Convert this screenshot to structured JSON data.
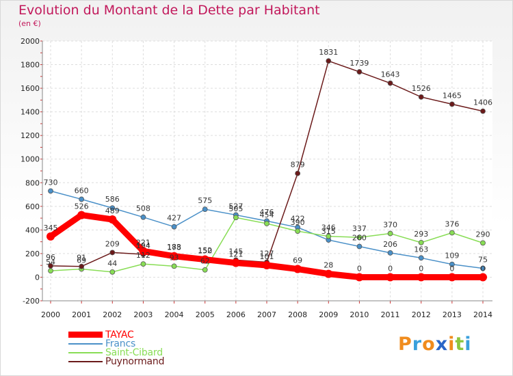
{
  "title": "Evolution du Montant de la Dette par Habitant",
  "subtitle": "(en €)",
  "logo": [
    "P",
    "r",
    "o",
    "x",
    "i",
    "t",
    "i"
  ],
  "logo_colors": [
    "#f08c1e",
    "#3aa0dc",
    "#f08c1e",
    "#2a66c8",
    "#f08c1e",
    "#8cc63e",
    "#3aa0dc"
  ],
  "chart_data": {
    "type": "line",
    "title": "Evolution du Montant de la Dette par Habitant",
    "ylabel": "(en €)",
    "xlabel": "",
    "categories": [
      "2000",
      "2001",
      "2002",
      "2003",
      "2004",
      "2005",
      "2006",
      "2007",
      "2008",
      "2009",
      "2010",
      "2011",
      "2012",
      "2013",
      "2014"
    ],
    "ylim": [
      -200,
      2000
    ],
    "yticks": [
      -200,
      0,
      200,
      400,
      600,
      800,
      1000,
      1200,
      1400,
      1600,
      1800,
      2000
    ],
    "legend_position": "bottom-left",
    "series": [
      {
        "name": "TAYAC",
        "color": "#ff0000",
        "weight": "heavy",
        "values": [
          345,
          526,
          489,
          221,
          178,
          150,
          121,
          101,
          69,
          28,
          0,
          0,
          0,
          0,
          0
        ],
        "labels": [
          "345",
          "526",
          "489",
          "221",
          "178",
          "150",
          "121",
          "101",
          "69",
          "28",
          "0",
          "0",
          "0",
          "0",
          "0"
        ]
      },
      {
        "name": "Francs",
        "color": "#4a90c8",
        "weight": "thin",
        "values": [
          730,
          660,
          586,
          508,
          427,
          575,
          527,
          476,
          422,
          315,
          260,
          206,
          163,
          109,
          75
        ],
        "labels": [
          "730",
          "660",
          "586",
          "508",
          "427",
          "575",
          "527",
          "476",
          "422",
          "315",
          "260",
          "206",
          "163",
          "109",
          "75"
        ]
      },
      {
        "name": "Saint-Cibard",
        "color": "#88dd55",
        "weight": "thin",
        "values": [
          54,
          69,
          44,
          112,
          93,
          62,
          505,
          454,
          390,
          346,
          337,
          370,
          293,
          376,
          290
        ],
        "labels": [
          "54",
          "69",
          "44",
          "112",
          "93",
          "62",
          "505",
          "454",
          "390",
          "346",
          "337",
          "370",
          "293",
          "376",
          "290"
        ]
      },
      {
        "name": "Puynormand",
        "color": "#6b1a1a",
        "weight": "thin",
        "values": [
          96,
          91,
          209,
          194,
          183,
          152,
          145,
          127,
          879,
          1831,
          1739,
          1643,
          1526,
          1465,
          1406
        ],
        "labels": [
          "96",
          "91",
          "209",
          "194",
          "183",
          "152",
          "145",
          "127",
          "879",
          "1831",
          "1739",
          "1643",
          "1526",
          "1465",
          "1406"
        ]
      }
    ]
  }
}
